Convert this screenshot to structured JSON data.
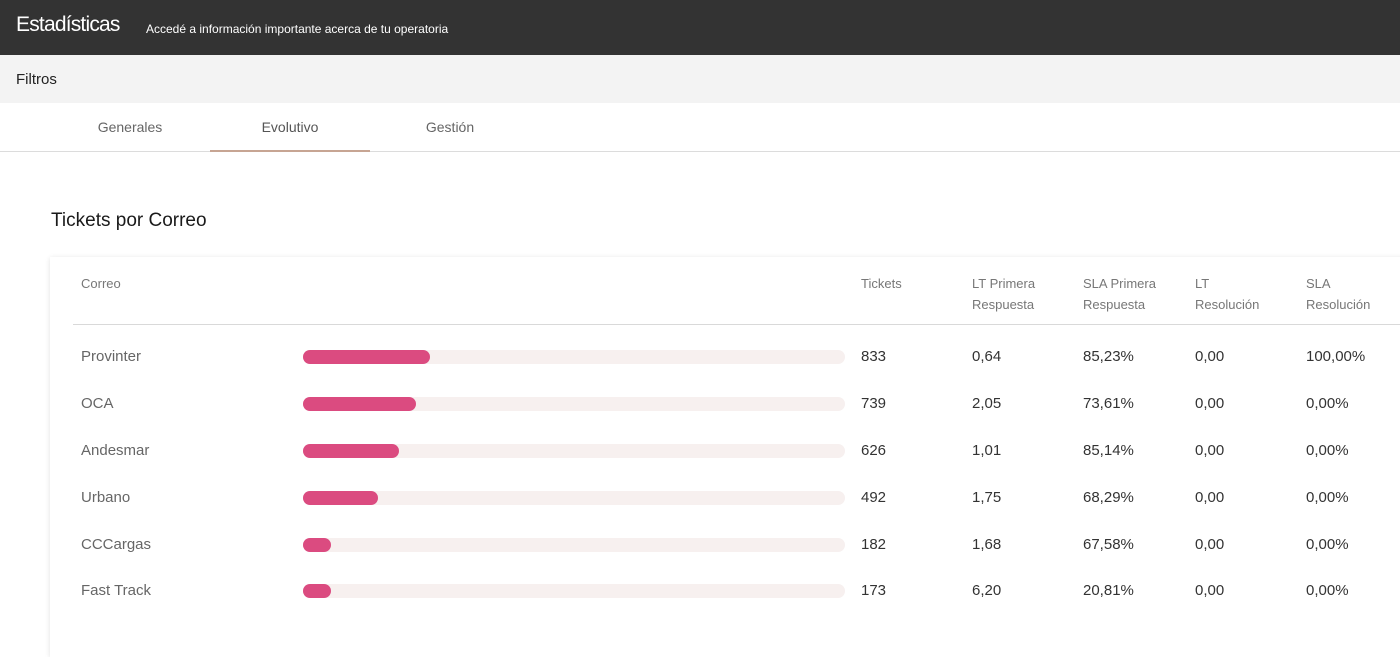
{
  "header": {
    "title": "Estadísticas",
    "subtitle": "Accedé a información importante acerca de tu operatoria"
  },
  "filters": {
    "label": "Filtros"
  },
  "tabs": [
    {
      "label": "Generales",
      "active": false
    },
    {
      "label": "Evolutivo",
      "active": true
    },
    {
      "label": "Gestión",
      "active": false
    }
  ],
  "section": {
    "title": "Tickets por Correo"
  },
  "table": {
    "columns": {
      "correo": "Correo",
      "tickets": "Tickets",
      "lt_primera_1": "LT Primera",
      "lt_primera_2": "Respuesta",
      "sla_primera_1": "SLA Primera",
      "sla_primera_2": "Respuesta",
      "lt_resolucion_1": "LT",
      "lt_resolucion_2": "Resolución",
      "sla_resolucion_1": "SLA",
      "sla_resolucion_2": "Resolución"
    },
    "bar_color": "#db4b80",
    "rows": [
      {
        "correo": "Provinter",
        "tickets": "833",
        "bar_value": 833,
        "lt_primera": "0,64",
        "sla_primera": "85,23%",
        "lt_resolucion": "0,00",
        "sla_resolucion": "100,00%"
      },
      {
        "correo": "OCA",
        "tickets": "739",
        "bar_value": 739,
        "lt_primera": "2,05",
        "sla_primera": "73,61%",
        "lt_resolucion": "0,00",
        "sla_resolucion": "0,00%"
      },
      {
        "correo": "Andesmar",
        "tickets": "626",
        "bar_value": 626,
        "lt_primera": "1,01",
        "sla_primera": "85,14%",
        "lt_resolucion": "0,00",
        "sla_resolucion": "0,00%"
      },
      {
        "correo": "Urbano",
        "tickets": "492",
        "bar_value": 492,
        "lt_primera": "1,75",
        "sla_primera": "68,29%",
        "lt_resolucion": "0,00",
        "sla_resolucion": "0,00%"
      },
      {
        "correo": "CCCargas",
        "tickets": "182",
        "bar_value": 182,
        "lt_primera": "1,68",
        "sla_primera": "67,58%",
        "lt_resolucion": "0,00",
        "sla_resolucion": "0,00%"
      },
      {
        "correo": "Fast Track",
        "tickets": "173",
        "bar_value": 173,
        "lt_primera": "6,20",
        "sla_primera": "20,81%",
        "lt_resolucion": "0,00",
        "sla_resolucion": "0,00%"
      }
    ]
  }
}
